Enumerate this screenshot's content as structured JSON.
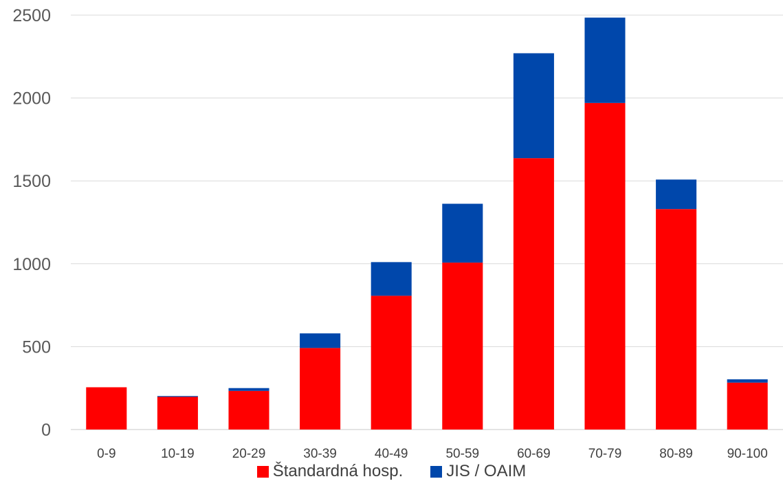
{
  "chart_data": {
    "type": "bar",
    "stacked": true,
    "categories": [
      "0-9",
      "10-19",
      "20-29",
      "30-39",
      "40-49",
      "50-59",
      "60-69",
      "70-79",
      "80-89",
      "90-100"
    ],
    "series": [
      {
        "name": "Štandardná hosp.",
        "color": "#ff0000",
        "values": [
          255,
          197,
          233,
          492,
          807,
          1007,
          1637,
          1970,
          1330,
          283
        ]
      },
      {
        "name": "JIS / OAIM",
        "color": "#0047ab",
        "values": [
          0,
          5,
          17,
          88,
          203,
          355,
          633,
          515,
          178,
          20
        ]
      }
    ],
    "ylim": [
      0,
      2500
    ],
    "yticks": [
      0,
      500,
      1000,
      1500,
      2000,
      2500
    ],
    "grid": true,
    "legend_position": "bottom"
  }
}
